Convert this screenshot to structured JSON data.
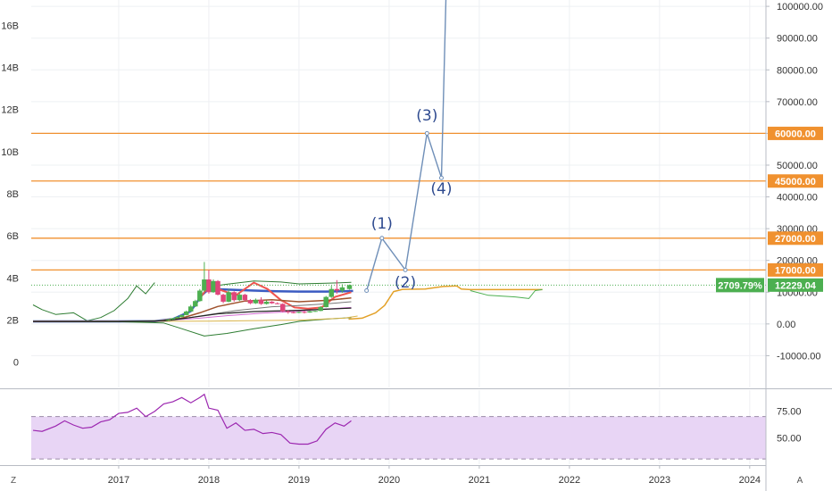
{
  "chart_data": {
    "type": "line",
    "left_axis": {
      "ticks": [
        "0",
        "2B",
        "4B",
        "6B",
        "8B",
        "10B",
        "12B",
        "14B",
        "16B"
      ],
      "values": [
        0,
        2,
        4,
        6,
        8,
        10,
        12,
        14,
        16
      ],
      "range": [
        -1.2,
        17.2
      ]
    },
    "right_axis": {
      "ticks": [
        "100000.00",
        "90000.00",
        "80000.00",
        "70000.00",
        "60000.00",
        "50000.00",
        "40000.00",
        "30000.00",
        "20000.00",
        "10000.00",
        "0.00",
        "-10000.00"
      ],
      "values": [
        100000,
        90000,
        80000,
        70000,
        60000,
        50000,
        40000,
        30000,
        20000,
        10000,
        0,
        -10000
      ],
      "range": [
        -20000,
        102000
      ]
    },
    "x_axis": {
      "ticks": [
        "2017",
        "2018",
        "2019",
        "2020",
        "2021",
        "2022",
        "2023",
        "2024"
      ],
      "values": [
        2017,
        2018,
        2019,
        2020,
        2021,
        2022,
        2023,
        2024
      ],
      "range": [
        2016.03,
        2024.18
      ]
    },
    "horizontal_levels": [
      {
        "value": 60000,
        "label": "60000.00",
        "color": "#f0912f"
      },
      {
        "value": 45000,
        "label": "45000.00",
        "color": "#f0912f"
      },
      {
        "value": 27000,
        "label": "27000.00",
        "color": "#f0912f"
      },
      {
        "value": 17000,
        "label": "17000.00",
        "color": "#f0912f"
      }
    ],
    "current_price": {
      "value": 12229.04,
      "label": "12229.04",
      "percent_label": "2709.79%",
      "color": "#4caf50"
    },
    "wave_projection": {
      "color": "#6f8fb8",
      "points": [
        [
          2019.75,
          10500
        ],
        [
          2019.92,
          27000
        ],
        [
          2020.18,
          17000
        ],
        [
          2020.42,
          60000
        ],
        [
          2020.58,
          46000
        ],
        [
          2020.63,
          102000
        ]
      ],
      "labels": [
        {
          "text": "(1)",
          "x": 2019.92,
          "y": 30000
        },
        {
          "text": "(2)",
          "x": 2020.18,
          "y": 11500
        },
        {
          "text": "(3)",
          "x": 2020.42,
          "y": 64000
        },
        {
          "text": "(4)",
          "x": 2020.58,
          "y": 41000
        }
      ]
    },
    "price_candles": [
      {
        "t": 2017.55,
        "o": 1100,
        "c": 1400,
        "h": 1500,
        "l": 1000
      },
      {
        "t": 2017.6,
        "o": 1400,
        "c": 1800,
        "h": 1900,
        "l": 1300
      },
      {
        "t": 2017.65,
        "o": 1800,
        "c": 2200,
        "h": 2400,
        "l": 1700
      },
      {
        "t": 2017.7,
        "o": 2200,
        "c": 2800,
        "h": 3000,
        "l": 2100
      },
      {
        "t": 2017.75,
        "o": 2800,
        "c": 3900,
        "h": 4200,
        "l": 2700
      },
      {
        "t": 2017.8,
        "o": 3900,
        "c": 5500,
        "h": 6000,
        "l": 3800
      },
      {
        "t": 2017.85,
        "o": 5500,
        "c": 7200,
        "h": 7600,
        "l": 5300
      },
      {
        "t": 2017.9,
        "o": 7200,
        "c": 10500,
        "h": 11000,
        "l": 7000
      },
      {
        "t": 2017.95,
        "o": 10500,
        "c": 14000,
        "h": 19500,
        "l": 10000
      },
      {
        "t": 2018.0,
        "o": 14000,
        "c": 10000,
        "h": 17000,
        "l": 9500
      },
      {
        "t": 2018.05,
        "o": 10000,
        "c": 13500,
        "h": 14000,
        "l": 9800
      },
      {
        "t": 2018.1,
        "o": 13500,
        "c": 9200,
        "h": 13800,
        "l": 9000
      },
      {
        "t": 2018.16,
        "o": 9200,
        "c": 7000,
        "h": 9500,
        "l": 6500
      },
      {
        "t": 2018.22,
        "o": 7000,
        "c": 10000,
        "h": 11000,
        "l": 6800
      },
      {
        "t": 2018.28,
        "o": 10000,
        "c": 7500,
        "h": 10300,
        "l": 7000
      },
      {
        "t": 2018.34,
        "o": 7500,
        "c": 9200,
        "h": 9800,
        "l": 7200
      },
      {
        "t": 2018.4,
        "o": 9200,
        "c": 7500,
        "h": 9500,
        "l": 7100
      },
      {
        "t": 2018.46,
        "o": 7500,
        "c": 6500,
        "h": 7800,
        "l": 6200
      },
      {
        "t": 2018.52,
        "o": 6500,
        "c": 7600,
        "h": 8000,
        "l": 6300
      },
      {
        "t": 2018.58,
        "o": 7600,
        "c": 6300,
        "h": 8400,
        "l": 6000
      },
      {
        "t": 2018.64,
        "o": 6300,
        "c": 7000,
        "h": 7400,
        "l": 6100
      },
      {
        "t": 2018.7,
        "o": 7000,
        "c": 6500,
        "h": 7200,
        "l": 6300
      },
      {
        "t": 2018.76,
        "o": 6500,
        "c": 6300,
        "h": 6800,
        "l": 6200
      },
      {
        "t": 2018.82,
        "o": 6300,
        "c": 4000,
        "h": 6500,
        "l": 3700
      },
      {
        "t": 2018.88,
        "o": 4000,
        "c": 3700,
        "h": 4300,
        "l": 3200
      },
      {
        "t": 2018.94,
        "o": 3700,
        "c": 3500,
        "h": 4000,
        "l": 3300
      },
      {
        "t": 2019.0,
        "o": 3500,
        "c": 3800,
        "h": 4000,
        "l": 3400
      },
      {
        "t": 2019.06,
        "o": 3800,
        "c": 3600,
        "h": 4100,
        "l": 3300
      },
      {
        "t": 2019.12,
        "o": 3600,
        "c": 4000,
        "h": 4200,
        "l": 3500
      },
      {
        "t": 2019.18,
        "o": 4000,
        "c": 4100,
        "h": 4200,
        "l": 3800
      },
      {
        "t": 2019.24,
        "o": 4100,
        "c": 5300,
        "h": 5600,
        "l": 4000
      },
      {
        "t": 2019.3,
        "o": 5300,
        "c": 8500,
        "h": 8800,
        "l": 5200
      },
      {
        "t": 2019.36,
        "o": 8500,
        "c": 11000,
        "h": 12000,
        "l": 8200
      },
      {
        "t": 2019.42,
        "o": 11000,
        "c": 10500,
        "h": 13800,
        "l": 9500
      },
      {
        "t": 2019.48,
        "o": 10500,
        "c": 11500,
        "h": 12500,
        "l": 9800
      },
      {
        "t": 2019.56,
        "o": 11000,
        "c": 12229,
        "h": 12400,
        "l": 10800
      }
    ],
    "overlays": [
      {
        "name": "",
        "color": "#3b5bc2",
        "width": 2.5,
        "points": [
          [
            2016.05,
            800
          ],
          [
            2017.0,
            800
          ],
          [
            2017.4,
            900
          ],
          [
            2017.6,
            1500
          ],
          [
            2017.8,
            4000
          ],
          [
            2017.92,
            9000
          ],
          [
            2018.0,
            11000
          ],
          [
            2018.2,
            10800
          ],
          [
            2018.5,
            10500
          ],
          [
            2018.75,
            10300
          ],
          [
            2019.0,
            10200
          ],
          [
            2019.3,
            10200
          ],
          [
            2019.5,
            10300
          ],
          [
            2019.6,
            10400
          ]
        ]
      },
      {
        "name": "",
        "color": "#f0544f",
        "width": 2,
        "points": [
          [
            2017.9,
            8000
          ],
          [
            2018.0,
            12000
          ],
          [
            2018.15,
            10500
          ],
          [
            2018.3,
            9000
          ],
          [
            2018.5,
            13000
          ],
          [
            2018.65,
            11000
          ],
          [
            2018.8,
            7500
          ],
          [
            2018.95,
            5200
          ],
          [
            2019.1,
            4800
          ],
          [
            2019.25,
            5200
          ],
          [
            2019.4,
            8500
          ],
          [
            2019.58,
            10000
          ]
        ]
      },
      {
        "name": "",
        "color": "#a0522d",
        "width": 1.5,
        "points": [
          [
            2016.05,
            800
          ],
          [
            2017.0,
            800
          ],
          [
            2017.4,
            900
          ],
          [
            2017.7,
            1800
          ],
          [
            2017.9,
            3500
          ],
          [
            2018.1,
            5500
          ],
          [
            2018.4,
            7200
          ],
          [
            2018.7,
            7600
          ],
          [
            2019.0,
            7000
          ],
          [
            2019.3,
            7400
          ],
          [
            2019.58,
            8200
          ]
        ]
      },
      {
        "name": "",
        "color": "#2e7d32",
        "width": 1,
        "points": [
          [
            2017.95,
            11500
          ],
          [
            2018.2,
            12500
          ],
          [
            2018.5,
            13500
          ],
          [
            2018.8,
            13200
          ],
          [
            2019.0,
            12600
          ],
          [
            2019.3,
            12800
          ],
          [
            2019.58,
            13100
          ]
        ]
      },
      {
        "name": "",
        "color": "#2e7d32",
        "width": 1,
        "points": [
          [
            2016.05,
            800
          ],
          [
            2017.0,
            700
          ],
          [
            2017.5,
            300
          ],
          [
            2017.7,
            -1500
          ],
          [
            2017.95,
            -3800
          ],
          [
            2018.2,
            -3000
          ],
          [
            2018.5,
            -1500
          ],
          [
            2018.8,
            -200
          ],
          [
            2019.0,
            800
          ],
          [
            2019.3,
            1500
          ],
          [
            2019.58,
            2000
          ]
        ]
      },
      {
        "name": "",
        "color": "#d36bd3",
        "width": 1,
        "points": [
          [
            2017.5,
            1000
          ],
          [
            2017.9,
            1800
          ],
          [
            2018.2,
            2600
          ],
          [
            2018.6,
            3400
          ],
          [
            2019.0,
            4000
          ],
          [
            2019.3,
            4700
          ],
          [
            2019.58,
            5200
          ]
        ]
      },
      {
        "name": "",
        "color": "#d9b44a",
        "width": 1,
        "points": [
          [
            2016.05,
            800
          ],
          [
            2017.0,
            800
          ],
          [
            2018.0,
            900
          ],
          [
            2019.0,
            1200
          ],
          [
            2019.5,
            1800
          ],
          [
            2019.65,
            2500
          ]
        ]
      },
      {
        "name": "",
        "color": "#777777",
        "width": 1,
        "points": [
          [
            2017.0,
            800
          ],
          [
            2017.6,
            1200
          ],
          [
            2017.9,
            2500
          ],
          [
            2018.3,
            4200
          ],
          [
            2018.7,
            5400
          ],
          [
            2019.0,
            5800
          ],
          [
            2019.3,
            6300
          ],
          [
            2019.58,
            7000
          ]
        ]
      },
      {
        "name": "",
        "color": "#222222",
        "width": 1.2,
        "points": [
          [
            2016.05,
            750
          ],
          [
            2017.0,
            750
          ],
          [
            2017.5,
            950
          ],
          [
            2017.8,
            2000
          ],
          [
            2018.1,
            3200
          ],
          [
            2018.5,
            3900
          ],
          [
            2019.0,
            4300
          ],
          [
            2019.58,
            5000
          ]
        ]
      }
    ],
    "left_axis_series": [
      {
        "name": "",
        "color": "#2e7d32",
        "width": 1,
        "points": [
          [
            2016.05,
            6000
          ],
          [
            2016.15,
            4500
          ],
          [
            2016.3,
            3000
          ],
          [
            2016.5,
            3500
          ],
          [
            2016.65,
            1000
          ],
          [
            2016.8,
            2000
          ],
          [
            2016.95,
            4200
          ],
          [
            2017.1,
            8000
          ],
          [
            2017.2,
            12000
          ],
          [
            2017.3,
            9500
          ],
          [
            2017.4,
            13000
          ]
        ]
      }
    ],
    "forward_series": [
      {
        "name": "",
        "color": "#e3a128",
        "width": 1.5,
        "points": [
          [
            2019.55,
            1500
          ],
          [
            2019.7,
            1800
          ],
          [
            2019.85,
            3500
          ],
          [
            2019.95,
            5800
          ],
          [
            2020.05,
            10200
          ],
          [
            2020.15,
            10900
          ],
          [
            2020.4,
            11000
          ],
          [
            2020.6,
            11800
          ],
          [
            2020.75,
            12000
          ],
          [
            2020.8,
            11000
          ],
          [
            2020.9,
            10800
          ],
          [
            2021.7,
            10800
          ]
        ]
      },
      {
        "name": "",
        "color": "#4caf50",
        "width": 1,
        "points": [
          [
            2020.9,
            10500
          ],
          [
            2021.1,
            9000
          ],
          [
            2021.4,
            8500
          ],
          [
            2021.55,
            8000
          ],
          [
            2021.62,
            10500
          ],
          [
            2021.7,
            10800
          ]
        ]
      }
    ],
    "rsi": {
      "range": [
        25,
        95
      ],
      "levels": [
        70,
        30
      ],
      "ticks": [
        "75.00",
        "50.00"
      ],
      "tick_values": [
        75,
        50
      ],
      "band_color": "#e8d5f5",
      "line_color": "#9c27b0",
      "points": [
        [
          2016.05,
          57
        ],
        [
          2016.15,
          56
        ],
        [
          2016.3,
          61
        ],
        [
          2016.4,
          66
        ],
        [
          2016.5,
          62
        ],
        [
          2016.6,
          59
        ],
        [
          2016.7,
          60
        ],
        [
          2016.8,
          65
        ],
        [
          2016.9,
          67
        ],
        [
          2017.0,
          73
        ],
        [
          2017.1,
          74
        ],
        [
          2017.2,
          78
        ],
        [
          2017.3,
          70
        ],
        [
          2017.4,
          75
        ],
        [
          2017.5,
          82
        ],
        [
          2017.6,
          84
        ],
        [
          2017.7,
          88
        ],
        [
          2017.8,
          83
        ],
        [
          2017.9,
          88
        ],
        [
          2017.95,
          91
        ],
        [
          2018.0,
          78
        ],
        [
          2018.1,
          76
        ],
        [
          2018.2,
          59
        ],
        [
          2018.3,
          64
        ],
        [
          2018.4,
          57
        ],
        [
          2018.5,
          58
        ],
        [
          2018.6,
          54
        ],
        [
          2018.7,
          55
        ],
        [
          2018.8,
          53
        ],
        [
          2018.9,
          45
        ],
        [
          2019.0,
          44
        ],
        [
          2019.1,
          44
        ],
        [
          2019.2,
          47
        ],
        [
          2019.3,
          58
        ],
        [
          2019.4,
          64
        ],
        [
          2019.5,
          61
        ],
        [
          2019.58,
          66
        ]
      ]
    },
    "rsi_x_range": [
      2016.03,
      2024.18
    ],
    "grid": true
  },
  "corner_buttons": {
    "left": "Z",
    "right": "A"
  }
}
